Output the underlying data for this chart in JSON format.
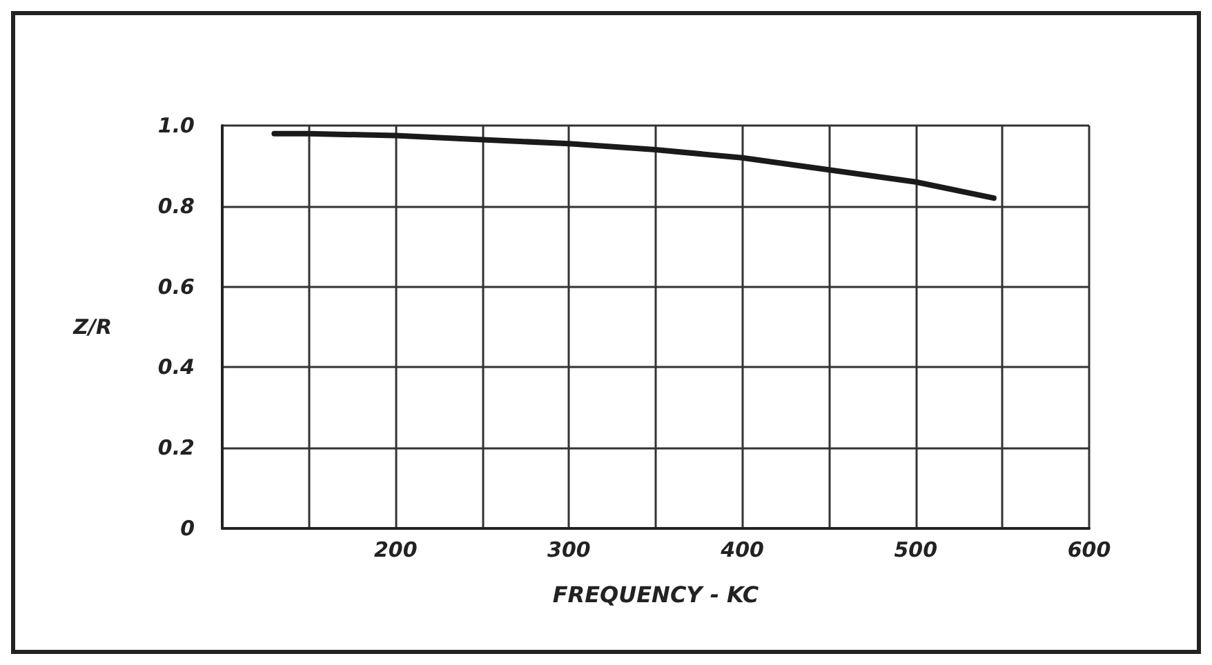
{
  "chart_data": {
    "type": "line",
    "xlabel": "FREQUENCY - KC",
    "ylabel": "Z/R",
    "series": [
      {
        "color": "#1a1a1a",
        "x": [
          130,
          150,
          200,
          250,
          300,
          350,
          400,
          450,
          500,
          545
        ],
        "values": [
          0.98,
          0.98,
          0.975,
          0.965,
          0.955,
          0.94,
          0.92,
          0.89,
          0.86,
          0.82
        ]
      }
    ],
    "xlim": [
      100,
      600
    ],
    "xticks": [
      {
        "value": 100,
        "label": null
      },
      {
        "value": 150,
        "label": null
      },
      200,
      {
        "value": 250,
        "label": null
      },
      300,
      {
        "value": 350,
        "label": null
      },
      400,
      {
        "value": 450,
        "label": null
      },
      500,
      {
        "value": 550,
        "label": null
      },
      600
    ],
    "ylim": [
      0,
      1
    ],
    "yticks": [
      0,
      0.2,
      0.4,
      0.6,
      0.8,
      {
        "value": 1,
        "label": "1.0"
      }
    ],
    "grid": true,
    "marker": "none",
    "line_style": "solid"
  }
}
